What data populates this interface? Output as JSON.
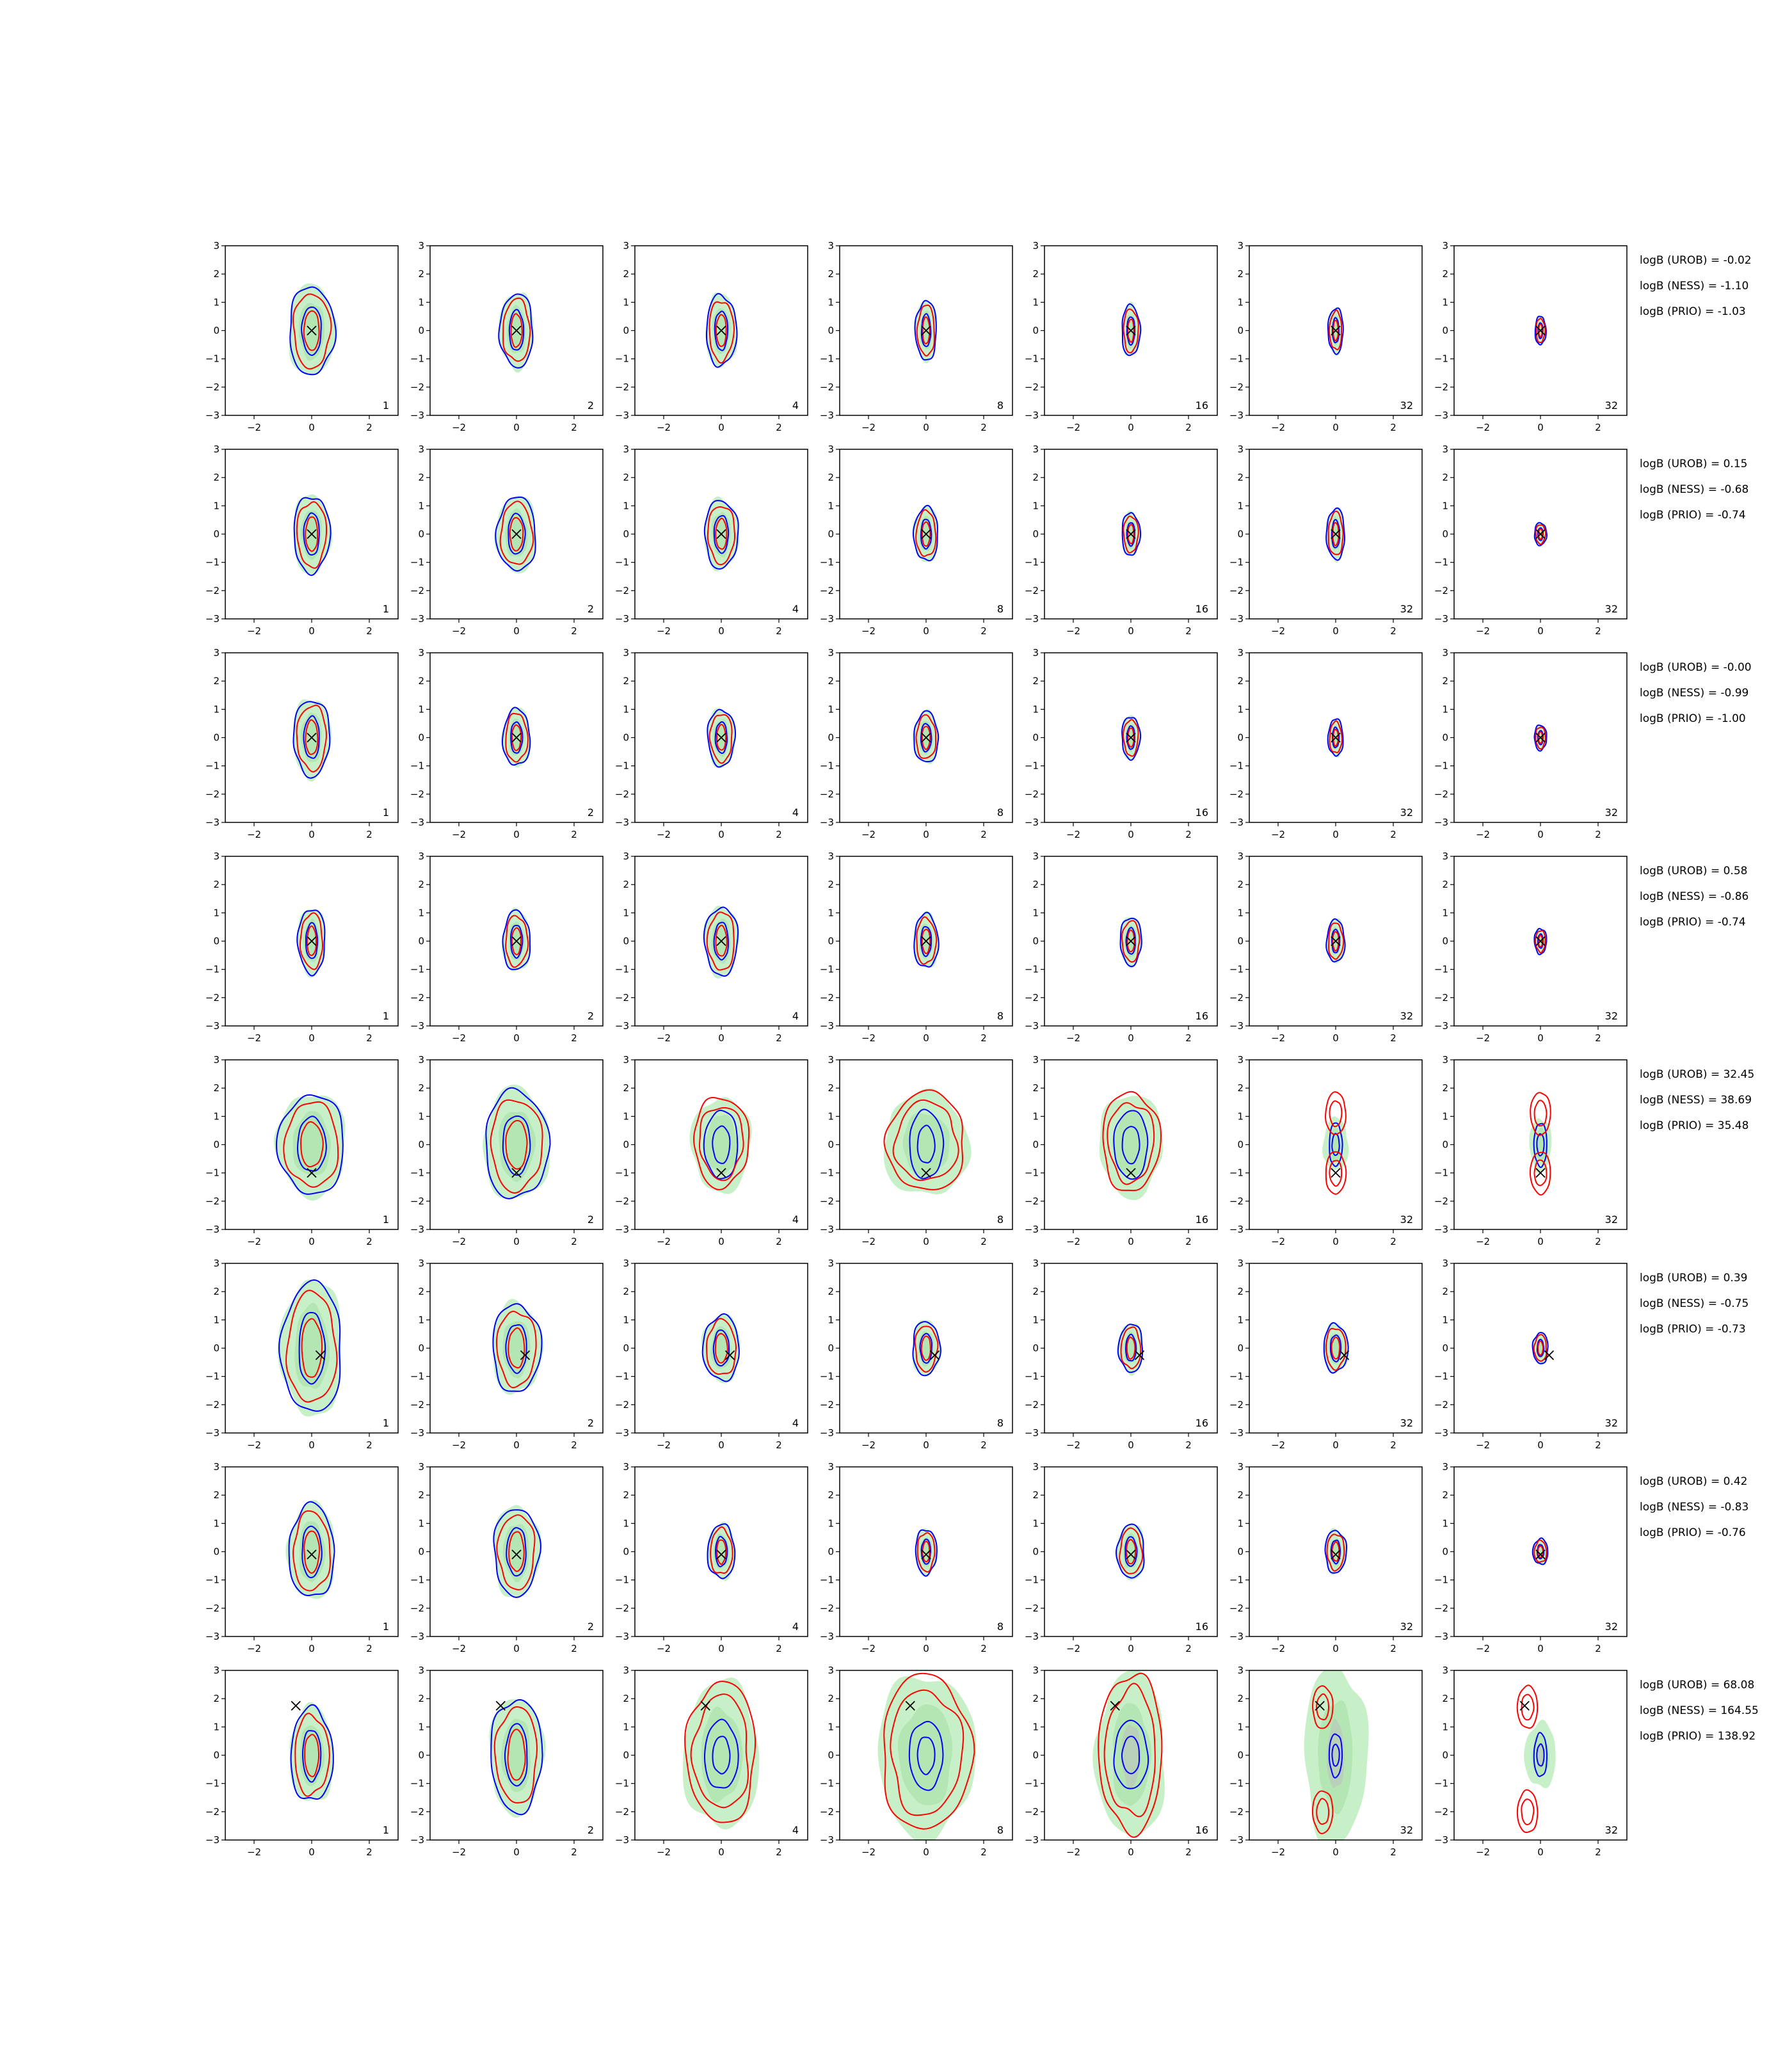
{
  "chart_data": {
    "type": "contour",
    "grid": {
      "rows": 8,
      "cols": 7
    },
    "xlim": [
      -3,
      3
    ],
    "ylim": [
      -3,
      3
    ],
    "xticks": [
      "−2",
      "0",
      "2"
    ],
    "yticks": [
      "3",
      "2",
      "1",
      "0",
      "−1",
      "−2",
      "−3"
    ],
    "column_labels": [
      "1",
      "2",
      "4",
      "8",
      "16",
      "32",
      "32"
    ],
    "colors": {
      "filled": "#c8f0c8",
      "filled_inner": "#b4e6b4",
      "gray_core": "#bdbdbd",
      "blue": "#0000ff",
      "red": "#ff0000",
      "marker": "#000000"
    },
    "rows": [
      {
        "marker": [
          0.0,
          0.0
        ],
        "annotations": [
          "logB (UROB) = -0.02",
          "logB (NESS) = -1.10",
          "logB (PRIO) = -1.03"
        ],
        "widths": [
          0.75,
          0.55,
          0.5,
          0.35,
          0.3,
          0.25,
          0.18
        ],
        "heights": [
          1.55,
          1.3,
          1.25,
          1.05,
          0.9,
          0.8,
          0.5
        ],
        "bimodal": false
      },
      {
        "marker": [
          0.0,
          0.0
        ],
        "annotations": [
          "logB (UROB) = 0.15",
          "logB (NESS) = -0.68",
          "logB (PRIO) = -0.74"
        ],
        "widths": [
          0.6,
          0.65,
          0.55,
          0.4,
          0.3,
          0.3,
          0.2
        ],
        "heights": [
          1.35,
          1.3,
          1.2,
          0.95,
          0.75,
          0.9,
          0.4
        ],
        "bimodal": false
      },
      {
        "marker": [
          0.0,
          0.0
        ],
        "annotations": [
          "logB (UROB) = -0.00",
          "logB (NESS) = -0.99",
          "logB (PRIO) = -1.00"
        ],
        "widths": [
          0.6,
          0.45,
          0.45,
          0.4,
          0.3,
          0.25,
          0.2
        ],
        "heights": [
          1.35,
          1.0,
          1.0,
          0.9,
          0.75,
          0.65,
          0.45
        ],
        "bimodal": false
      },
      {
        "marker": [
          0.0,
          0.0
        ],
        "annotations": [
          "logB (UROB) = 0.58",
          "logB (NESS) = -0.86",
          "logB (PRIO) = -0.74"
        ],
        "widths": [
          0.45,
          0.45,
          0.55,
          0.4,
          0.35,
          0.3,
          0.2
        ],
        "heights": [
          1.15,
          1.05,
          1.2,
          0.95,
          0.85,
          0.75,
          0.45
        ],
        "bimodal": false
      },
      {
        "marker": [
          0.0,
          -1.0
        ],
        "annotations": [
          "logB (UROB) = 32.45",
          "logB (NESS) = 38.69",
          "logB (PRIO) = 35.48"
        ],
        "widths": [
          1.1,
          1.05,
          0.95,
          1.35,
          1.0,
          0.4,
          0.35
        ],
        "heights": [
          1.75,
          1.9,
          1.6,
          1.75,
          1.75,
          0.9,
          0.9
        ],
        "bimodal": true
      },
      {
        "marker": [
          0.3,
          -0.25
        ],
        "annotations": [
          "logB (UROB) = 0.39",
          "logB (NESS) = -0.75",
          "logB (PRIO) = -0.73"
        ],
        "widths": [
          1.0,
          0.8,
          0.6,
          0.45,
          0.4,
          0.4,
          0.25
        ],
        "heights": [
          2.3,
          1.55,
          1.15,
          0.95,
          0.85,
          0.85,
          0.55
        ],
        "bimodal": false
      },
      {
        "marker": [
          0.0,
          -0.1
        ],
        "annotations": [
          "logB (UROB) = 0.42",
          "logB (NESS) = -0.83",
          "logB (PRIO) = -0.76"
        ],
        "widths": [
          0.75,
          0.75,
          0.45,
          0.35,
          0.45,
          0.35,
          0.25
        ],
        "heights": [
          1.65,
          1.55,
          0.95,
          0.8,
          0.95,
          0.75,
          0.45
        ],
        "bimodal": false
      },
      {
        "marker": [
          -0.55,
          1.75
        ],
        "annotations": [
          "logB (UROB) = 68.08",
          "logB (NESS) = 164.55",
          "logB (PRIO) = 138.92"
        ],
        "widths": [
          0.7,
          0.85,
          1.2,
          1.55,
          1.1,
          1.0,
          0.5
        ],
        "heights": [
          1.65,
          2.0,
          2.5,
          2.75,
          2.8,
          3.0,
          1.1
        ],
        "bimodal": true
      }
    ]
  }
}
